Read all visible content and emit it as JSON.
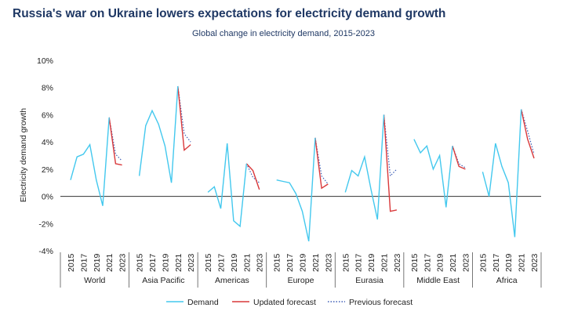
{
  "title": "Russia's war on Ukraine lowers expectations for electricity demand growth",
  "subtitle": "Global change in electricity demand, 2015-2023",
  "chart_data": {
    "type": "line",
    "ylabel": "Electricity demand growth",
    "ylim": [
      -4,
      10
    ],
    "yticks": [
      "-4%",
      "-2%",
      "0%",
      "2%",
      "4%",
      "6%",
      "8%",
      "10%"
    ],
    "grid": false,
    "legend_position": "bottom",
    "year_tick_labels": [
      "2015",
      "2017",
      "2019",
      "2021",
      "2023"
    ],
    "years": [
      2015,
      2016,
      2017,
      2018,
      2019,
      2020,
      2021,
      2022,
      2023
    ],
    "series_colors": {
      "demand": "#43c8ee",
      "updated": "#d9383a",
      "previous": "#3f5fb6"
    },
    "legend": [
      "Demand",
      "Updated forecast",
      "Previous forecast"
    ],
    "groups": [
      {
        "region": "World",
        "demand": [
          1.2,
          2.9,
          3.1,
          3.8,
          1.2,
          -0.7,
          5.8
        ],
        "updated": [
          5.8,
          2.4,
          2.3
        ],
        "previous": [
          5.8,
          3.1,
          2.6
        ]
      },
      {
        "region": "Asia Pacific",
        "demand": [
          1.5,
          5.2,
          6.3,
          5.3,
          3.7,
          1.0,
          8.1
        ],
        "updated": [
          8.1,
          3.4,
          3.8
        ],
        "previous": [
          8.1,
          4.6,
          4.0
        ]
      },
      {
        "region": "Americas",
        "demand": [
          0.3,
          0.7,
          -0.9,
          3.9,
          -1.8,
          -2.2,
          2.4
        ],
        "updated": [
          2.4,
          1.9,
          0.5
        ],
        "previous": [
          2.4,
          1.4,
          1.0
        ]
      },
      {
        "region": "Europe",
        "demand": [
          1.2,
          1.1,
          1.0,
          0.2,
          -1.1,
          -3.3,
          4.3
        ],
        "updated": [
          4.3,
          0.6,
          0.9
        ],
        "previous": [
          4.3,
          1.5,
          0.9
        ]
      },
      {
        "region": "Eurasia",
        "demand": [
          0.3,
          1.9,
          1.5,
          2.9,
          0.5,
          -1.7,
          6.0
        ],
        "updated": [
          6.0,
          -1.1,
          -1.0
        ],
        "previous": [
          6.0,
          1.5,
          2.0
        ]
      },
      {
        "region": "Middle East",
        "demand": [
          4.2,
          3.2,
          3.7,
          2.0,
          3.0,
          -0.8,
          3.7
        ],
        "updated": [
          3.7,
          2.2,
          2.0
        ],
        "previous": [
          3.7,
          2.4,
          2.1
        ]
      },
      {
        "region": "Africa",
        "demand": [
          1.8,
          0.0,
          3.9,
          2.2,
          1.0,
          -3.0,
          6.4
        ],
        "updated": [
          6.4,
          4.2,
          2.8
        ],
        "previous": [
          6.4,
          4.8,
          3.1
        ]
      }
    ]
  }
}
